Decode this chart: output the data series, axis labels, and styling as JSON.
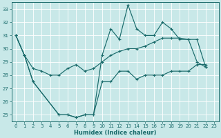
{
  "xlabel": "Humidex (Indice chaleur)",
  "background_color": "#c8e8e8",
  "line_color": "#1a6b6b",
  "xlim": [
    -0.5,
    23.5
  ],
  "ylim": [
    24.5,
    33.5
  ],
  "xticks": [
    0,
    1,
    2,
    3,
    4,
    5,
    6,
    7,
    8,
    9,
    10,
    11,
    12,
    13,
    14,
    15,
    16,
    17,
    18,
    19,
    20,
    21,
    22,
    23
  ],
  "yticks": [
    25,
    26,
    27,
    28,
    29,
    30,
    31,
    32,
    33
  ],
  "curve1_x": [
    0,
    1,
    2,
    5,
    6,
    7,
    8,
    9,
    10,
    11,
    12,
    13,
    14,
    15,
    16,
    17,
    18,
    19,
    20,
    21,
    22
  ],
  "curve1_y": [
    31,
    29.5,
    27.5,
    25,
    25,
    24.8,
    25,
    25,
    29.5,
    31.5,
    30.7,
    33.3,
    31.5,
    31,
    31,
    32,
    31.5,
    30.7,
    30.7,
    29,
    28.6
  ],
  "curve2_x": [
    0,
    1,
    2,
    5,
    6,
    7,
    8,
    9,
    10,
    11,
    12,
    13,
    14,
    15,
    16,
    17,
    18,
    19,
    20,
    21,
    22
  ],
  "curve2_y": [
    31,
    29.5,
    27.5,
    25,
    25,
    24.8,
    25,
    25,
    27.5,
    27.5,
    28.3,
    28.3,
    27.7,
    28,
    28,
    28,
    28.3,
    28.3,
    28.3,
    28.8,
    28.8
  ],
  "curve3_x": [
    0,
    1,
    2,
    3,
    4,
    5,
    6,
    7,
    8,
    9,
    10,
    11,
    12,
    13,
    14,
    15,
    16,
    17,
    18,
    19,
    20,
    21,
    22
  ],
  "curve3_y": [
    31,
    29.5,
    28.5,
    28.3,
    28,
    28,
    28.5,
    28.8,
    28.3,
    28.5,
    29,
    29.5,
    29.8,
    30,
    30,
    30.2,
    30.5,
    30.8,
    30.8,
    30.8,
    30.7,
    30.7,
    28.6
  ]
}
